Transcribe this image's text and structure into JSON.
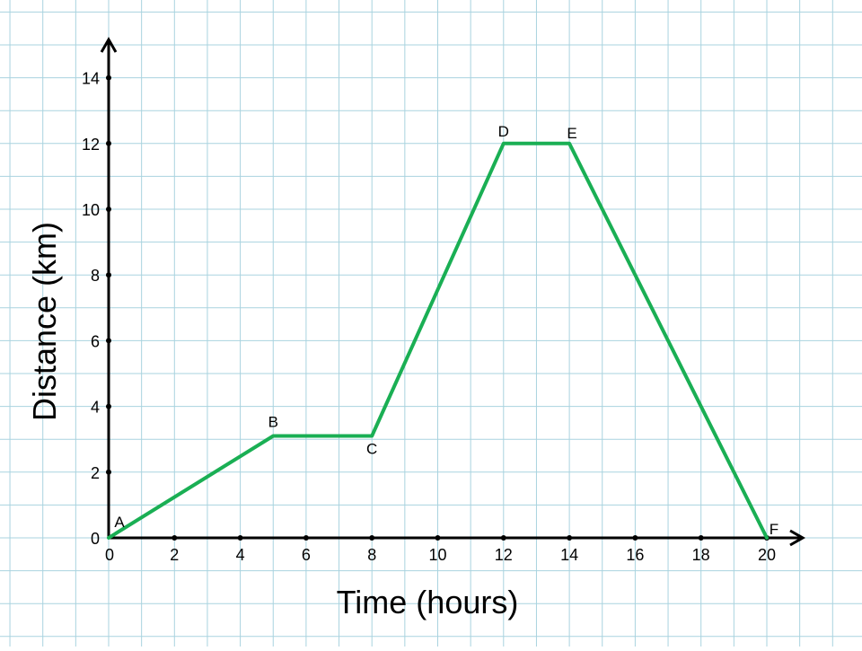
{
  "chart_data": {
    "type": "line",
    "xlabel": "Time (hours)",
    "ylabel": "Distance (km)",
    "xlim": [
      0,
      20
    ],
    "ylim": [
      0,
      14
    ],
    "x_ticks": [
      2,
      4,
      6,
      8,
      10,
      12,
      14,
      16,
      18,
      20
    ],
    "y_ticks": [
      0,
      2,
      4,
      6,
      8,
      10,
      12,
      14
    ],
    "origin_label": "0",
    "grid": true,
    "colors": {
      "line": "#1aaf54",
      "grid": "#a9d3df",
      "axis": "#000000"
    },
    "series": [
      {
        "points": [
          {
            "label": "A",
            "x": 0,
            "y": 0
          },
          {
            "label": "B",
            "x": 5,
            "y": 3.1
          },
          {
            "label": "C",
            "x": 8,
            "y": 3.1
          },
          {
            "label": "D",
            "x": 12,
            "y": 12
          },
          {
            "label": "E",
            "x": 14,
            "y": 12
          },
          {
            "label": "F",
            "x": 20,
            "y": 0
          }
        ]
      }
    ]
  }
}
